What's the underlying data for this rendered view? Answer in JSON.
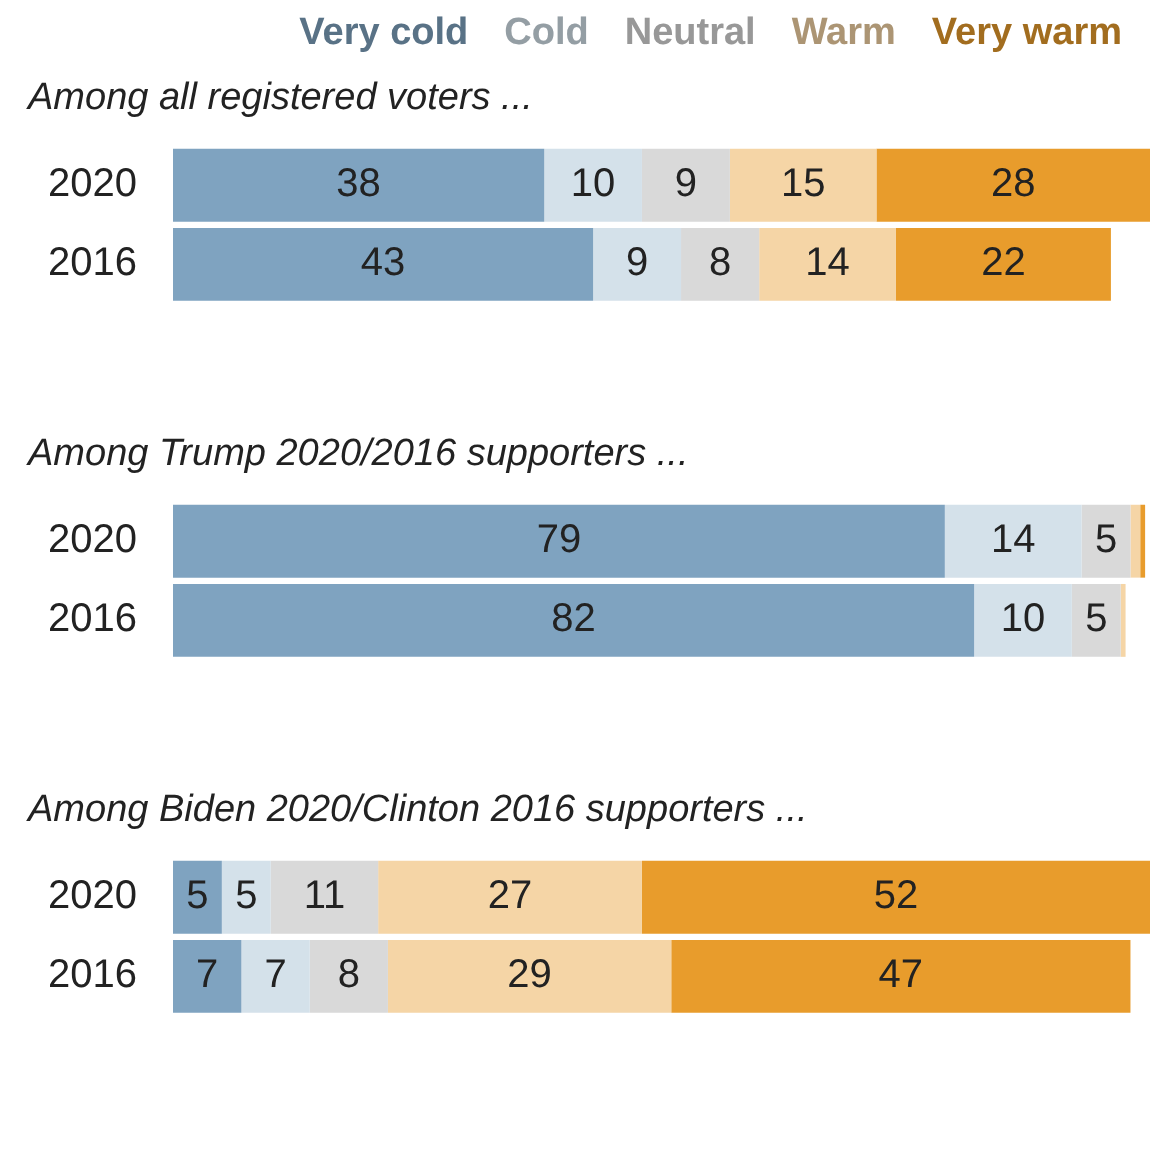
{
  "chart_data": [
    {
      "type": "bar",
      "orientation": "horizontal",
      "stacked": true,
      "title": "Among all registered voters ...",
      "categories": [
        "2020",
        "2016"
      ],
      "xlim": [
        0,
        100
      ],
      "tick_labels": "y",
      "legend": "top",
      "series": [
        {
          "name": "Very cold",
          "color": "#7fa3c0",
          "values": [
            38,
            43
          ],
          "value_labels": [
            "38",
            "43"
          ]
        },
        {
          "name": "Cold",
          "color": "#d4e1ea",
          "values": [
            10,
            9
          ],
          "value_labels": [
            "10",
            "9"
          ]
        },
        {
          "name": "Neutral",
          "color": "#d9d9d9",
          "values": [
            9,
            8
          ],
          "value_labels": [
            "9",
            "8"
          ]
        },
        {
          "name": "Warm",
          "color": "#f5d5a6",
          "values": [
            15,
            14
          ],
          "value_labels": [
            "15",
            "14"
          ]
        },
        {
          "name": "Very warm",
          "color": "#e89c2c",
          "values": [
            28,
            22
          ],
          "value_labels": [
            "28",
            "22"
          ]
        }
      ]
    },
    {
      "type": "bar",
      "orientation": "horizontal",
      "stacked": true,
      "title": "Among Trump 2020/2016 supporters ...",
      "categories": [
        "2020",
        "2016"
      ],
      "xlim": [
        0,
        100
      ],
      "tick_labels": "y",
      "series": [
        {
          "color": "#7fa3c0",
          "values": [
            79,
            82
          ],
          "value_labels": [
            "79",
            "82"
          ]
        },
        {
          "color": "#d4e1ea",
          "values": [
            14,
            10
          ],
          "value_labels": [
            "14",
            "10"
          ]
        },
        {
          "color": "#d9d9d9",
          "values": [
            5,
            5
          ],
          "value_labels": [
            "5",
            "5"
          ]
        },
        {
          "color": "#f5d5a6",
          "values": [
            1,
            0.5
          ],
          "value_labels": [
            null,
            null
          ]
        },
        {
          "color": "#e89c2c",
          "values": [
            0.5,
            0
          ],
          "value_labels": [
            null,
            null
          ]
        }
      ]
    },
    {
      "type": "bar",
      "orientation": "horizontal",
      "stacked": true,
      "title": "Among Biden 2020/Clinton 2016 supporters ...",
      "categories": [
        "2020",
        "2016"
      ],
      "xlim": [
        0,
        100
      ],
      "tick_labels": "y",
      "series": [
        {
          "color": "#7fa3c0",
          "values": [
            5,
            7
          ],
          "value_labels": [
            "5",
            "7"
          ]
        },
        {
          "color": "#d4e1ea",
          "values": [
            5,
            7
          ],
          "value_labels": [
            "5",
            "7"
          ]
        },
        {
          "color": "#d9d9d9",
          "values": [
            11,
            8
          ],
          "value_labels": [
            "11",
            "8"
          ]
        },
        {
          "color": "#f5d5a6",
          "values": [
            27,
            29
          ],
          "value_labels": [
            "27",
            "29"
          ]
        },
        {
          "color": "#e89c2c",
          "values": [
            52,
            47
          ],
          "value_labels": [
            "52",
            "47"
          ]
        }
      ]
    }
  ]
}
